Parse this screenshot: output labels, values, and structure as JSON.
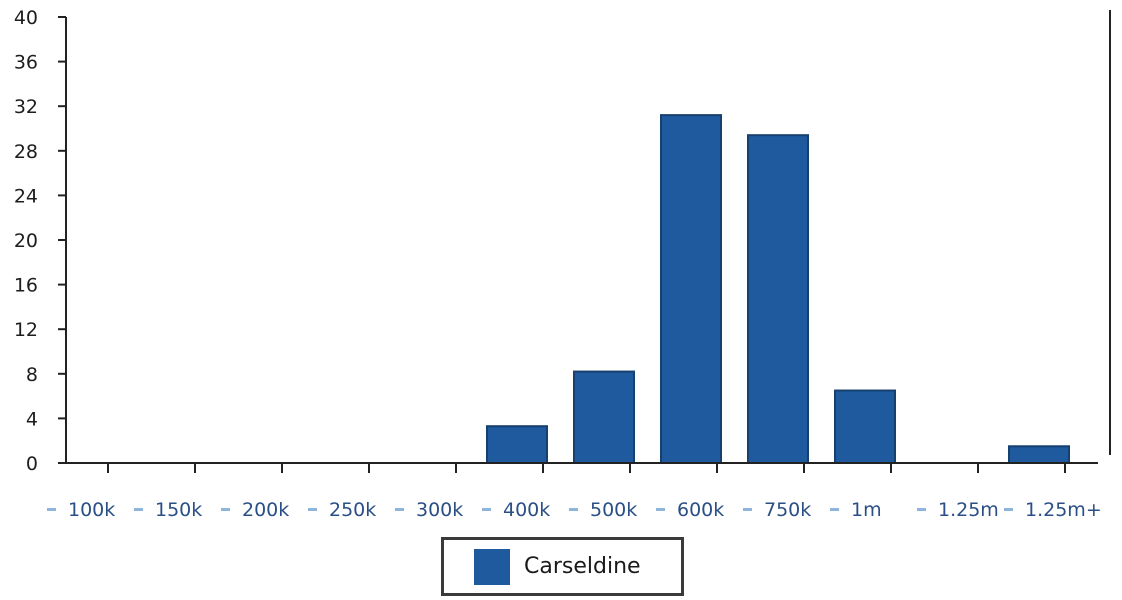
{
  "chart_data": {
    "type": "bar",
    "categories": [
      "100k",
      "150k",
      "200k",
      "250k",
      "300k",
      "400k",
      "500k",
      "600k",
      "750k",
      "1m",
      "1.25m",
      "1.25m+"
    ],
    "series": [
      {
        "name": "Carseldine",
        "values": [
          0,
          0,
          0,
          0,
          0,
          3.3,
          8.2,
          31.2,
          29.4,
          6.5,
          0,
          1.5
        ],
        "color": "#1f5a9f"
      }
    ],
    "yticks": [
      "0",
      "4",
      "8",
      "12",
      "16",
      "20",
      "24",
      "28",
      "32",
      "36",
      "40"
    ],
    "ylim": [
      0,
      40
    ],
    "grid": false,
    "legend_position": "bottom-center",
    "title": "",
    "xlabel": "",
    "ylabel": ""
  }
}
